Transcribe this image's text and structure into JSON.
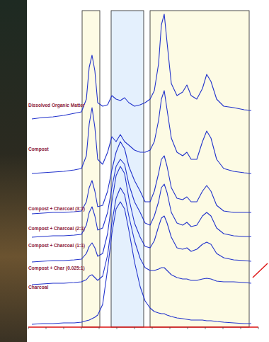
{
  "chart_data": {
    "type": "line",
    "x": [
      5,
      20,
      35,
      50,
      65,
      75,
      82,
      86,
      90,
      94,
      98,
      105,
      112,
      118,
      124,
      130,
      136,
      142,
      150,
      158,
      165,
      172,
      178,
      184,
      188,
      192,
      196,
      202,
      210,
      218,
      224,
      230,
      238,
      246,
      252,
      258,
      266,
      276,
      290,
      305,
      315
    ],
    "xlim": [
      0,
      325
    ],
    "ylim": [
      0,
      462
    ],
    "xticks": [
      0,
      25,
      50,
      75,
      100,
      125,
      150,
      175,
      200,
      225,
      250,
      275,
      300,
      325
    ],
    "tick_labels": false,
    "grid": false,
    "regions": [
      {
        "from": 76,
        "to": 101,
        "color": "#fdfbe4"
      },
      {
        "from": 117,
        "to": 163,
        "color": "#e4f0fd"
      },
      {
        "from": 172,
        "to": 312,
        "color": "#fdfbe4"
      }
    ],
    "series": [
      {
        "name": "Dissolved Organic Matter",
        "color": "#2233cc",
        "values": [
          294,
          296,
          297,
          299,
          302,
          304,
          322,
          367,
          384,
          362,
          317,
          312,
          314,
          327,
          322,
          320,
          324,
          317,
          312,
          314,
          317,
          322,
          334,
          372,
          427,
          442,
          402,
          344,
          327,
          332,
          342,
          327,
          322,
          337,
          357,
          347,
          322,
          312,
          310,
          307,
          306
        ]
      },
      {
        "name": "Compost",
        "color": "#2233cc",
        "values": [
          217,
          218,
          219,
          220,
          222,
          224,
          242,
          287,
          310,
          282,
          237,
          230,
          247,
          269,
          262,
          272,
          262,
          257,
          250,
          247,
          247,
          250,
          262,
          292,
          322,
          334,
          307,
          267,
          247,
          242,
          247,
          237,
          237,
          262,
          277,
          267,
          237,
          224,
          220,
          218,
          217
        ]
      },
      {
        "name": "Compost + Charcoal (3:1)",
        "color": "#2233cc",
        "values": [
          160,
          161,
          162,
          162,
          163,
          164,
          177,
          197,
          207,
          192,
          170,
          172,
          192,
          222,
          247,
          262,
          252,
          227,
          207,
          192,
          177,
          177,
          192,
          217,
          237,
          242,
          227,
          197,
          182,
          180,
          184,
          177,
          177,
          192,
          200,
          192,
          172,
          164,
          162,
          162,
          162
        ]
      },
      {
        "name": "Compost + Charcoal (2:1)",
        "color": "#2233cc",
        "values": [
          127,
          128,
          129,
          129,
          130,
          131,
          144,
          162,
          170,
          157,
          137,
          140,
          162,
          197,
          227,
          237,
          230,
          202,
          177,
          162,
          147,
          144,
          157,
          177,
          197,
          202,
          190,
          162,
          147,
          144,
          148,
          142,
          144,
          157,
          162,
          157,
          140,
          132,
          129,
          128,
          128
        ]
      },
      {
        "name": "Compost + Charcoal (1:1)",
        "color": "#2233cc",
        "values": [
          92,
          93,
          94,
          94,
          95,
          96,
          104,
          114,
          119,
          112,
          100,
          104,
          132,
          177,
          214,
          227,
          217,
          182,
          147,
          127,
          114,
          112,
          122,
          142,
          154,
          157,
          147,
          127,
          112,
          110,
          112,
          107,
          110,
          117,
          120,
          117,
          104,
          98,
          95,
          94,
          93
        ]
      },
      {
        "name": "Compost + Char (0.025:1)",
        "color": "#2233cc",
        "values": [
          60,
          61,
          62,
          62,
          63,
          64,
          67,
          72,
          74,
          70,
          66,
          72,
          102,
          147,
          182,
          197,
          187,
          157,
          122,
          97,
          84,
          80,
          80,
          82,
          84,
          84,
          80,
          74,
          70,
          68,
          68,
          66,
          66,
          68,
          69,
          68,
          65,
          64,
          64,
          63,
          62
        ]
      },
      {
        "name": "Charcoal",
        "color": "#2233cc",
        "values": [
          4,
          5,
          5,
          6,
          6,
          7,
          9,
          10,
          12,
          14,
          17,
          32,
          82,
          132,
          167,
          177,
          167,
          137,
          92,
          57,
          37,
          27,
          22,
          20,
          19,
          19,
          17,
          15,
          13,
          12,
          11,
          10,
          10,
          10,
          9,
          9,
          8,
          7,
          6,
          5,
          5
        ]
      }
    ]
  }
}
